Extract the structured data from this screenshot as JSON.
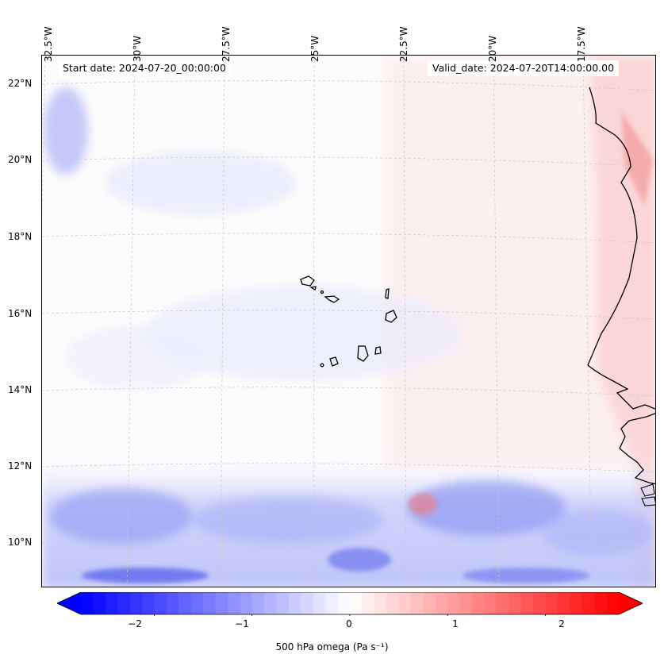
{
  "map": {
    "start_date": "Start date: 2024-07-20_00:00:00",
    "valid_date": "Valid_date: 2024-07-20T14:00:00.00",
    "lon_labels": [
      "32.5°W",
      "30°W",
      "27.5°W",
      "25°W",
      "22.5°W",
      "20°W",
      "17.5°W"
    ],
    "lat_labels": [
      "22°N",
      "20°N",
      "18°N",
      "16°N",
      "14°N",
      "12°N",
      "10°N"
    ],
    "field_description": "omega field: near-zero pale tones over ocean, blue ascent band 9-12°N, red subsidence along African coast",
    "coastline_color": "#000000",
    "grid_line_color": "#c8c8c8"
  },
  "colorbar": {
    "label": "500 hPa omega (Pa s⁻¹)",
    "tick_labels": [
      "−2",
      "−1",
      "0",
      "1",
      "2"
    ],
    "tick_values": [
      -2,
      -1,
      0,
      1,
      2
    ],
    "range": [
      -2.75,
      2.75
    ],
    "cmap": "bwr",
    "colors": {
      "low": "#0000ff",
      "mid": "#ffffff",
      "high": "#ff0000"
    }
  }
}
